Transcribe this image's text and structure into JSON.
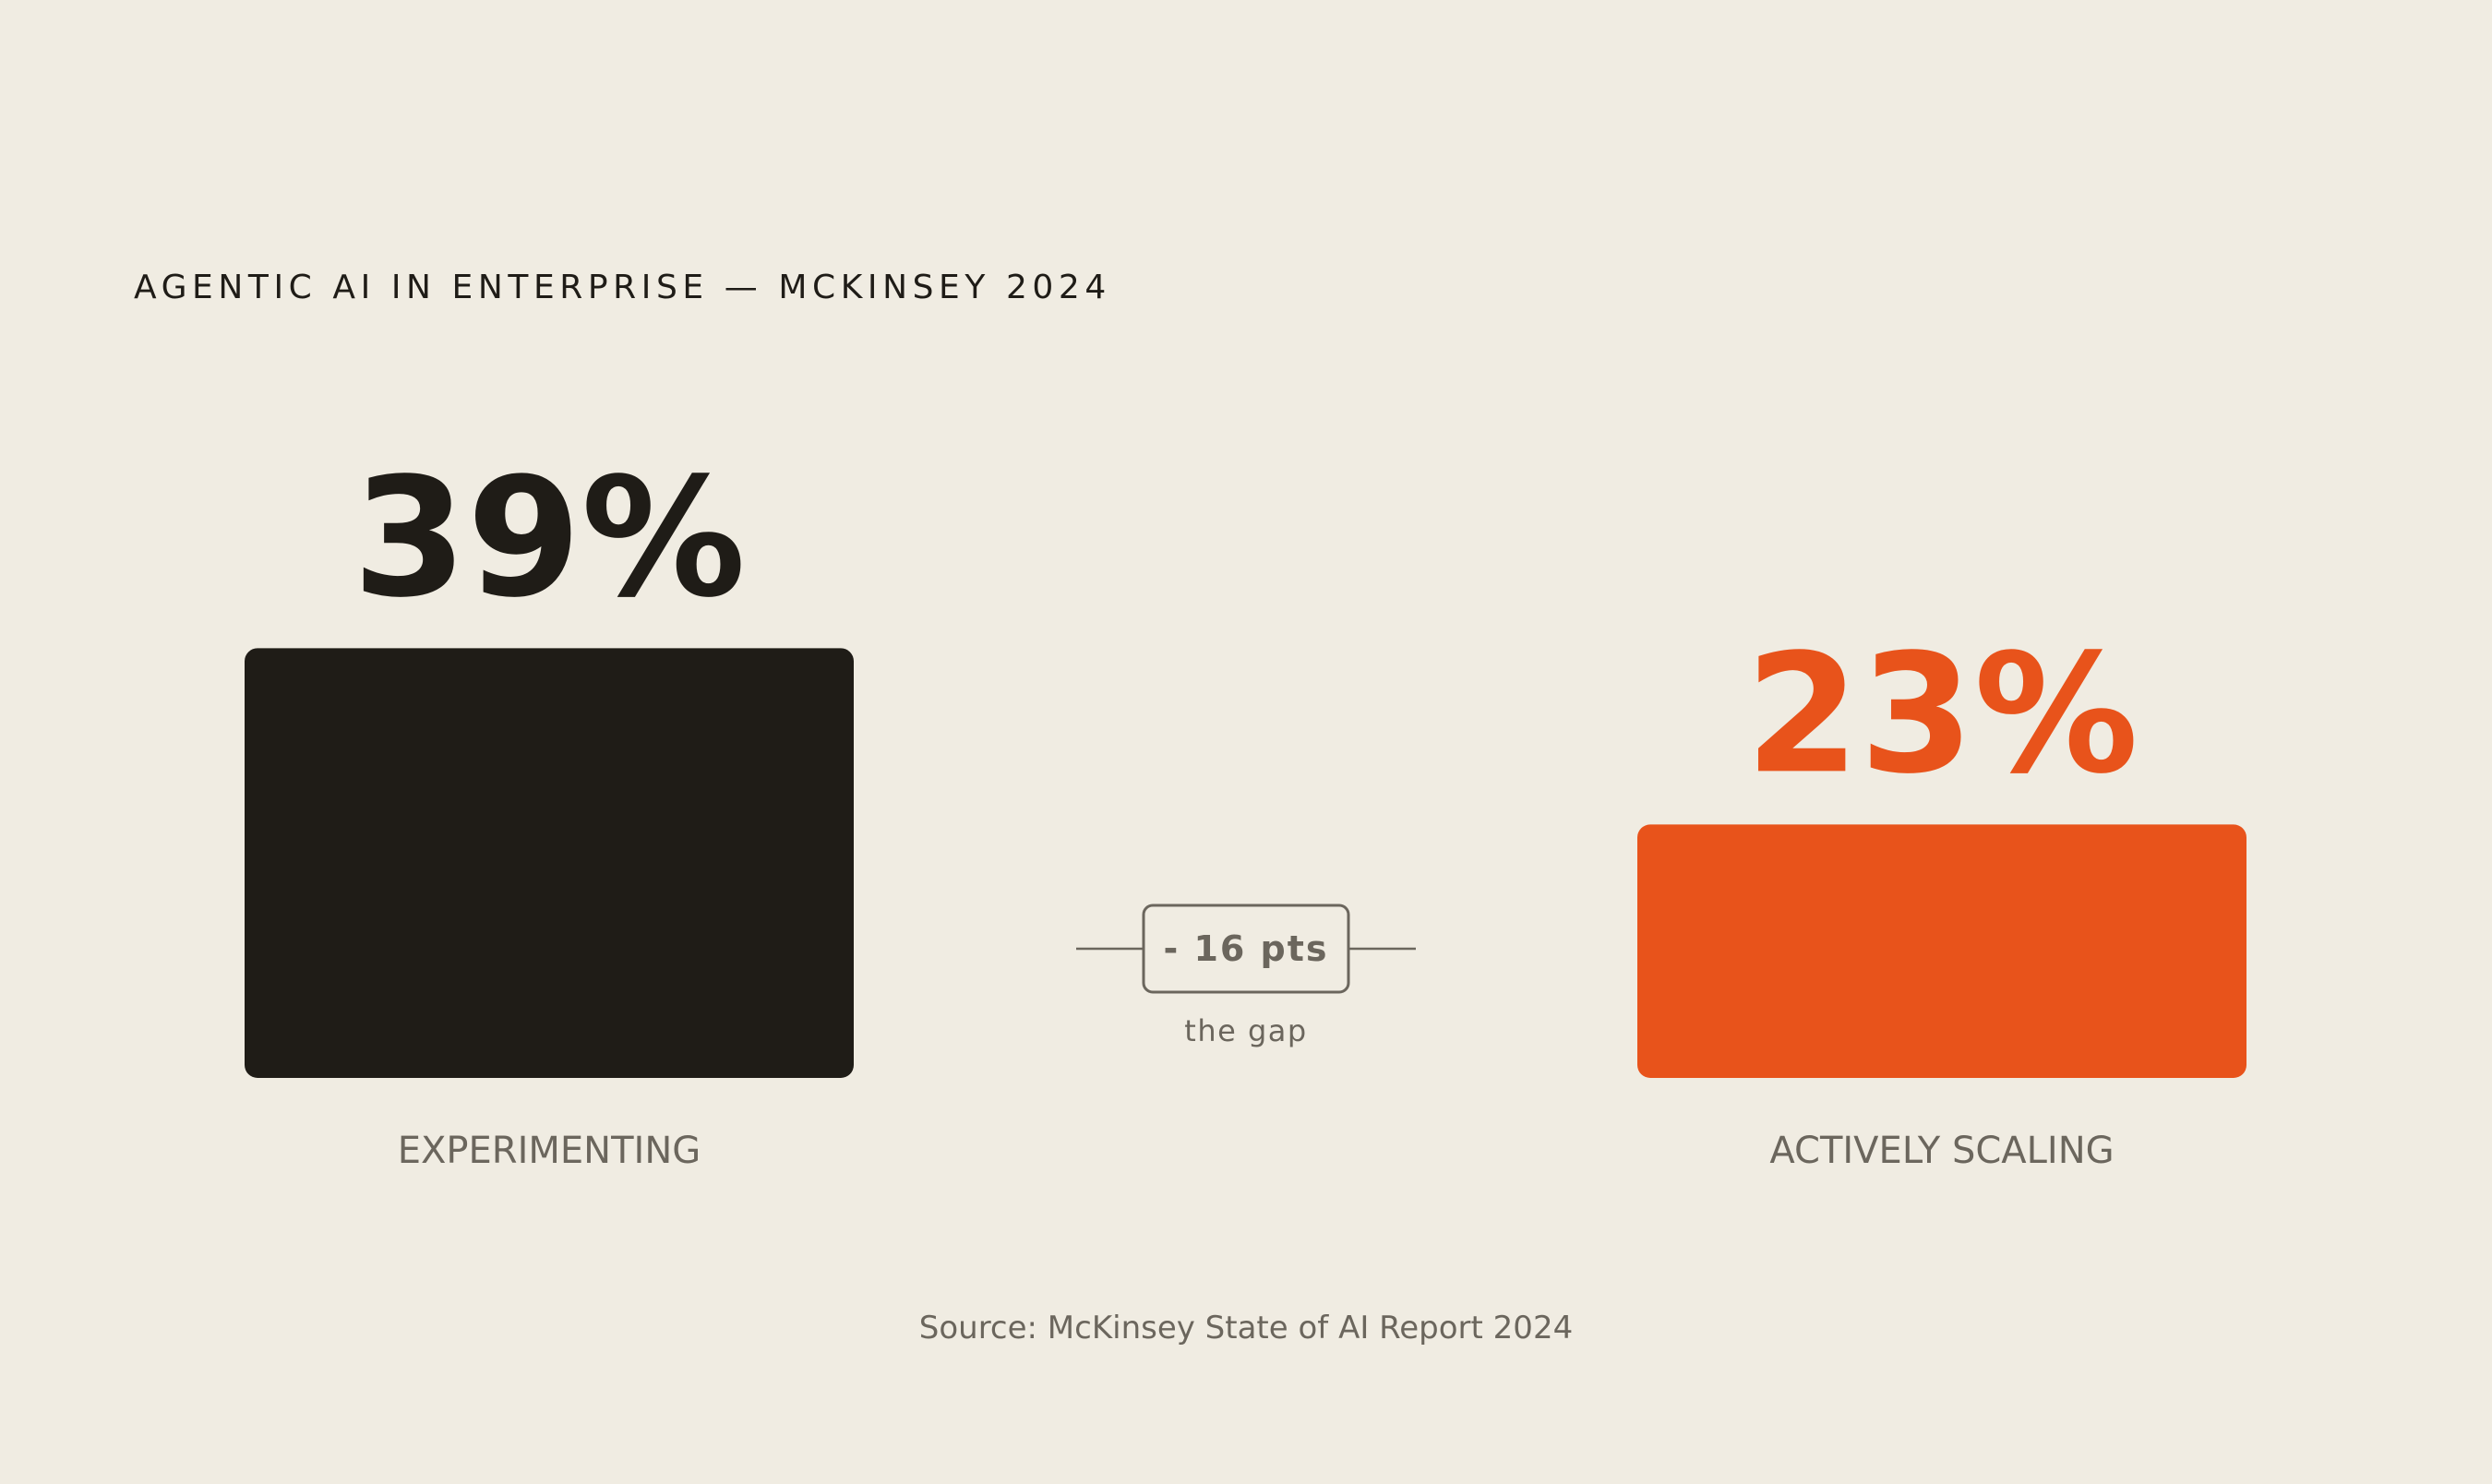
{
  "header": {
    "eyebrow": "AGENTIC AI IN ENTERPRISE — MCKINSEY 2024"
  },
  "chart_data": {
    "type": "bar",
    "categories": [
      "EXPERIMENTING",
      "ACTIVELY SCALING"
    ],
    "values": [
      39,
      23
    ],
    "value_labels": [
      "39%",
      "23%"
    ],
    "unit": "%",
    "colors": [
      "#1f1c17",
      "#e8531b"
    ],
    "value_label_colors": [
      "#1f1c17",
      "#e8531b"
    ],
    "category_label_color": "#6b665d",
    "grid": false,
    "legend": "none",
    "annotation": {
      "value": -16,
      "label": "- 16 pts",
      "caption": "the gap"
    }
  },
  "footer": {
    "source": "Source: McKinsey State of AI Report 2024"
  }
}
